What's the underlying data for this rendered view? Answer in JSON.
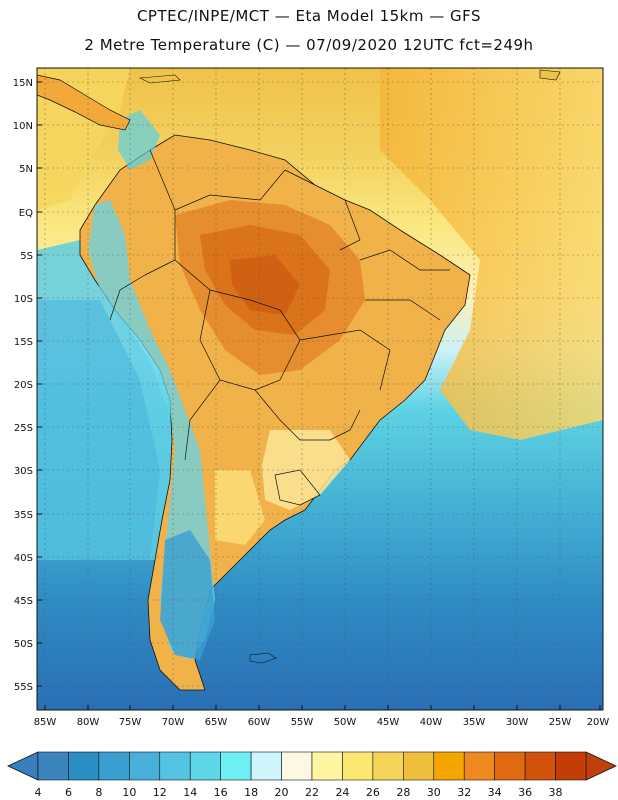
{
  "header": {
    "line1": "CPTEC/INPE/MCT —  Eta Model 15km — GFS",
    "line2": "2 Metre Temperature (C) — 07/09/2020 12UTC fct=249h"
  },
  "map": {
    "latitude_labels": [
      "15N",
      "10N",
      "5N",
      "EQ",
      "5S",
      "10S",
      "15S",
      "20S",
      "25S",
      "30S",
      "35S",
      "40S",
      "45S",
      "50S",
      "55S"
    ],
    "longitude_labels": [
      "85W",
      "80W",
      "75W",
      "70W",
      "65W",
      "60W",
      "55W",
      "50W",
      "45W",
      "40W",
      "35W",
      "30W",
      "25W",
      "20W"
    ],
    "lat_range": [
      17,
      -58
    ],
    "lon_range": [
      -86,
      -20
    ],
    "background_color": "#f2c94a"
  },
  "colorbar": {
    "labels": [
      "4",
      "6",
      "8",
      "10",
      "12",
      "14",
      "16",
      "18",
      "20",
      "22",
      "24",
      "26",
      "28",
      "30",
      "32",
      "34",
      "36",
      "38"
    ],
    "colors": [
      "#3a84c0",
      "#2a8dc4",
      "#3a9ed0",
      "#49b0db",
      "#55c4e2",
      "#5cd6e8",
      "#6deff3",
      "#cdf5fb",
      "#fdf8e3",
      "#fdf5a0",
      "#fbe870",
      "#f6d45a",
      "#efbf3c",
      "#f5a500",
      "#ef8a20",
      "#e06a10",
      "#d1520a",
      "#c23e06"
    ],
    "low_color": "#3a7fbd",
    "high_color": "#c0400a"
  }
}
